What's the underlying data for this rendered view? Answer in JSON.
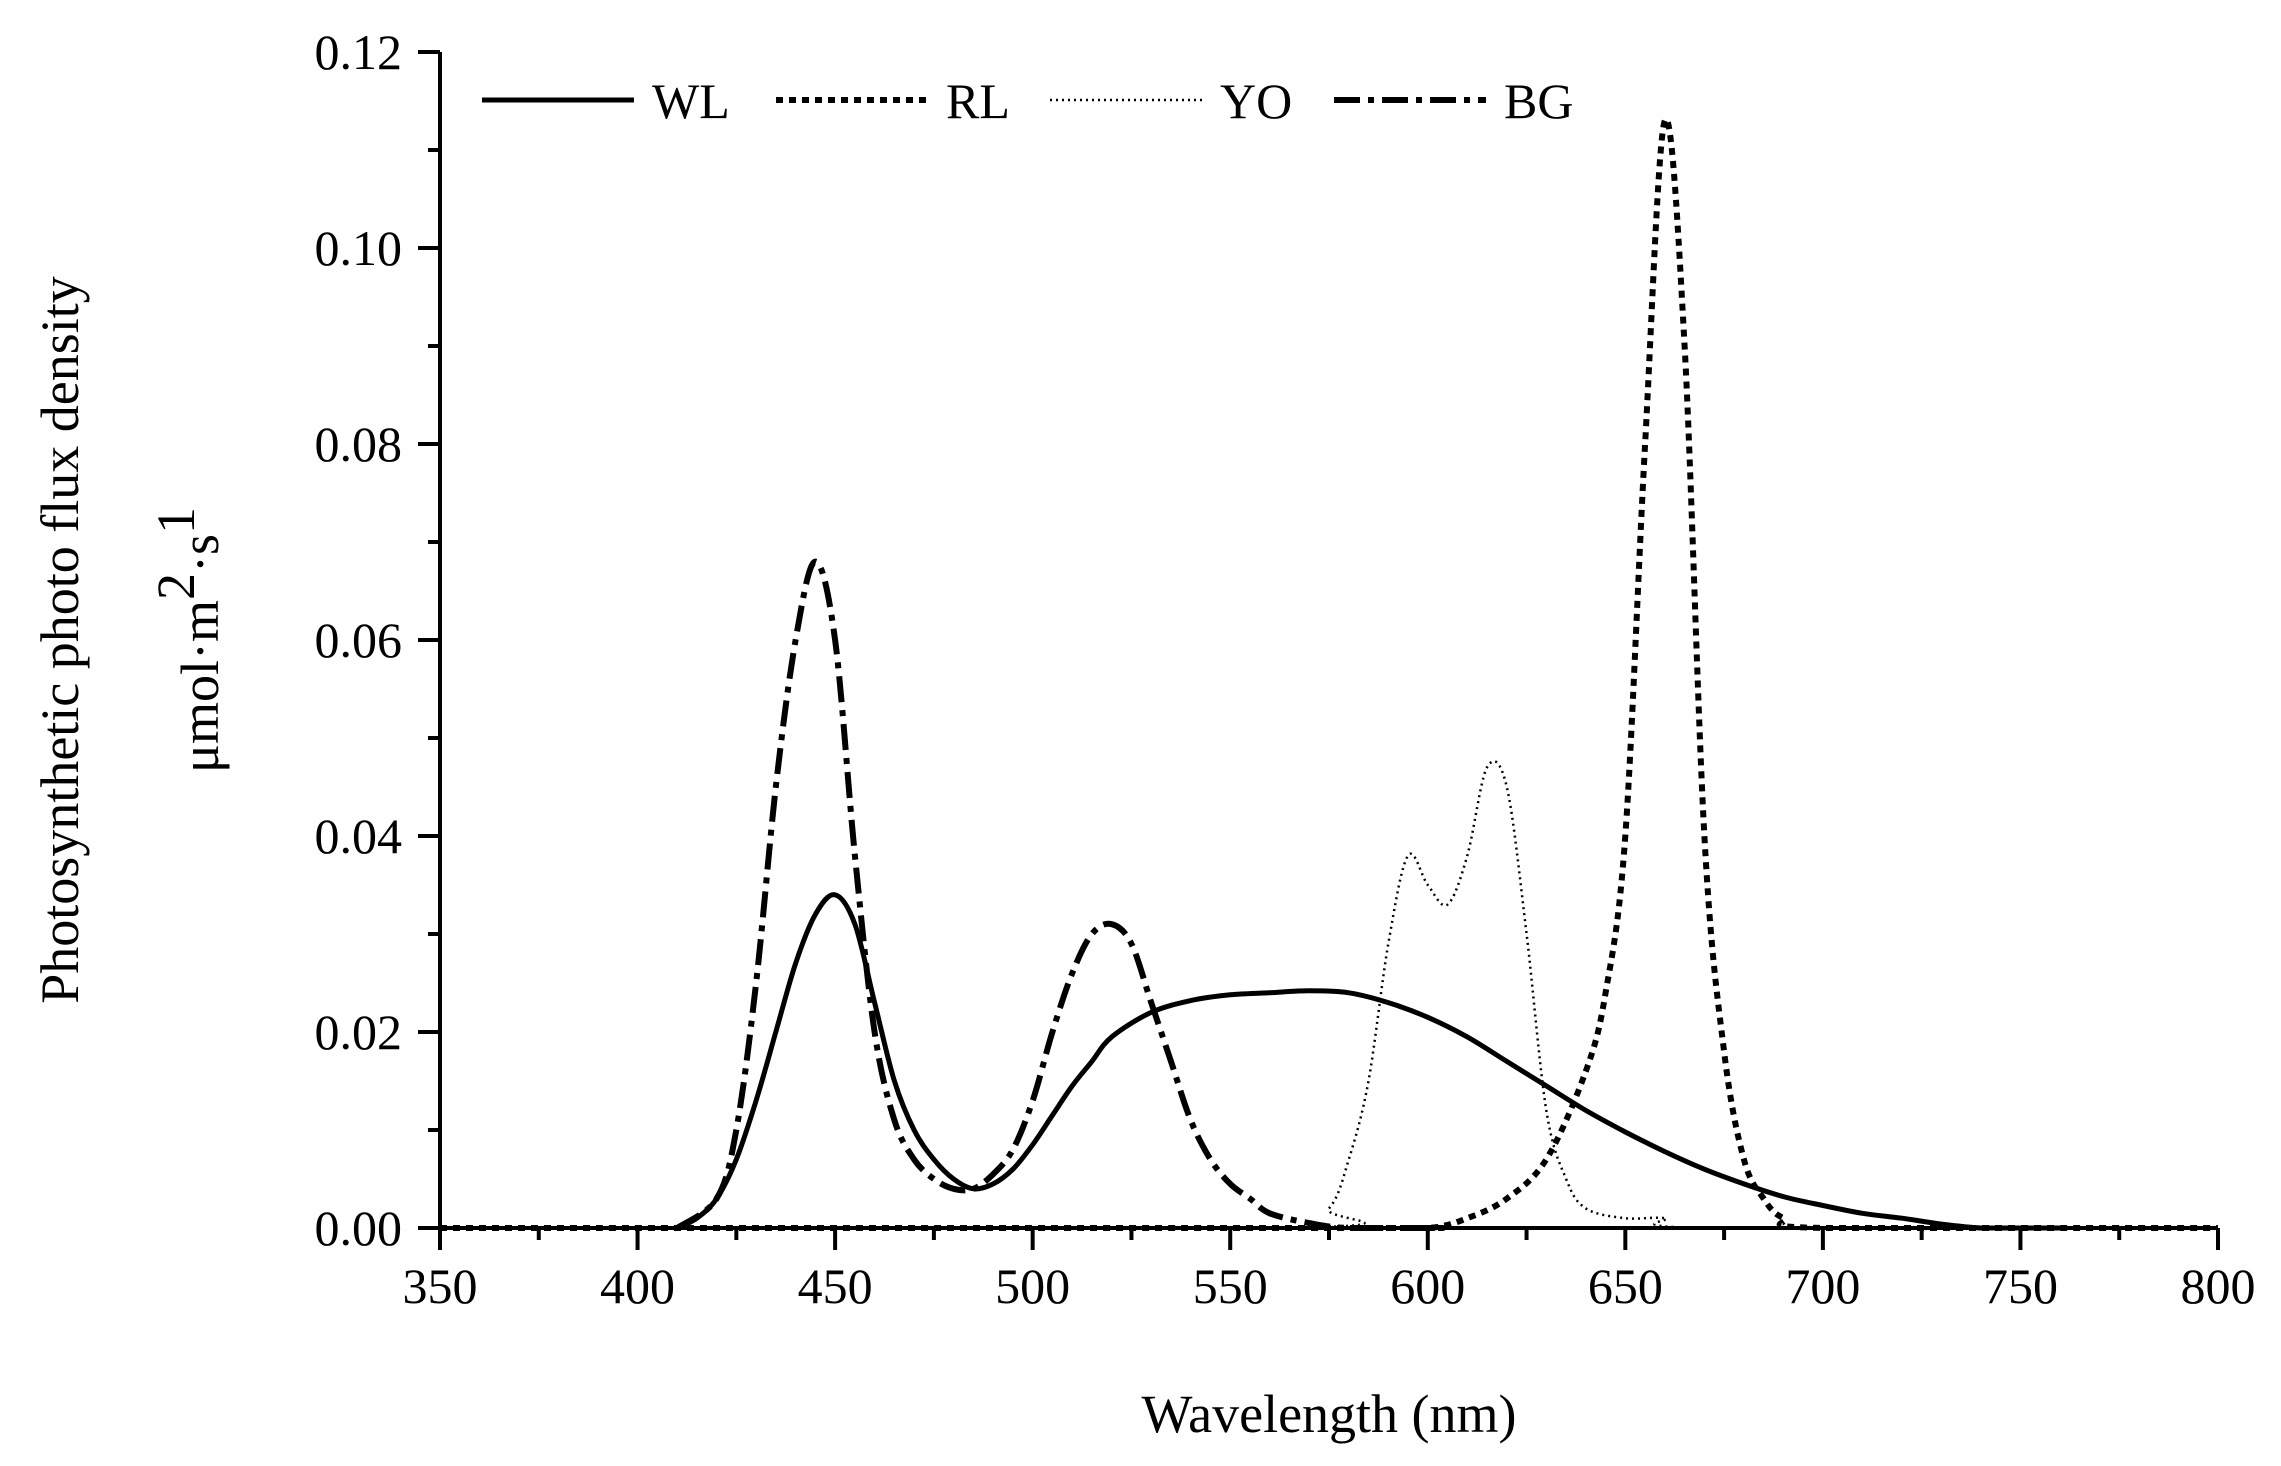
{
  "chart_data": {
    "type": "line",
    "title": "",
    "xlabel": "Wavelength (nm)",
    "ylabel": "Photosynthetic photo flux density",
    "ylabel_unit": {
      "base": "μmol·m",
      "sup1": "2",
      "mid": "·s",
      "sup2": "1"
    },
    "xlim": [
      350,
      800
    ],
    "ylim": [
      0,
      0.12
    ],
    "xticks": [
      350,
      400,
      450,
      500,
      550,
      600,
      650,
      700,
      750,
      800
    ],
    "yticks": [
      0.0,
      0.02,
      0.04,
      0.06,
      0.08,
      0.1,
      0.12
    ],
    "grid": false,
    "legend_position": "top",
    "colors": {
      "line": "#000000",
      "axis": "#000000",
      "background": "#ffffff"
    },
    "series": [
      {
        "name": "WL",
        "style": "solid",
        "points": [
          [
            410,
            0
          ],
          [
            415,
            0.001
          ],
          [
            420,
            0.003
          ],
          [
            425,
            0.007
          ],
          [
            430,
            0.013
          ],
          [
            435,
            0.02
          ],
          [
            440,
            0.027
          ],
          [
            445,
            0.032
          ],
          [
            450,
            0.034
          ],
          [
            455,
            0.031
          ],
          [
            460,
            0.023
          ],
          [
            465,
            0.015
          ],
          [
            470,
            0.01
          ],
          [
            475,
            0.007
          ],
          [
            480,
            0.005
          ],
          [
            485,
            0.004
          ],
          [
            490,
            0.0045
          ],
          [
            495,
            0.006
          ],
          [
            500,
            0.0085
          ],
          [
            505,
            0.0115
          ],
          [
            510,
            0.0145
          ],
          [
            515,
            0.017
          ],
          [
            520,
            0.0195
          ],
          [
            530,
            0.022
          ],
          [
            540,
            0.0232
          ],
          [
            550,
            0.0238
          ],
          [
            560,
            0.024
          ],
          [
            570,
            0.0242
          ],
          [
            580,
            0.024
          ],
          [
            590,
            0.023
          ],
          [
            600,
            0.0215
          ],
          [
            610,
            0.0195
          ],
          [
            620,
            0.017
          ],
          [
            630,
            0.0145
          ],
          [
            640,
            0.012
          ],
          [
            650,
            0.0098
          ],
          [
            660,
            0.0078
          ],
          [
            670,
            0.006
          ],
          [
            680,
            0.0045
          ],
          [
            690,
            0.0032
          ],
          [
            700,
            0.0023
          ],
          [
            710,
            0.0015
          ],
          [
            720,
            0.001
          ],
          [
            730,
            0.0004
          ],
          [
            740,
            0
          ],
          [
            750,
            0
          ],
          [
            760,
            0
          ]
        ]
      },
      {
        "name": "RL",
        "style": "dotted",
        "points": [
          [
            350,
            0
          ],
          [
            580,
            0
          ],
          [
            600,
            0
          ],
          [
            610,
            0.001
          ],
          [
            620,
            0.003
          ],
          [
            630,
            0.007
          ],
          [
            640,
            0.016
          ],
          [
            645,
            0.024
          ],
          [
            650,
            0.04
          ],
          [
            655,
            0.08
          ],
          [
            660,
            0.113
          ],
          [
            665,
            0.09
          ],
          [
            670,
            0.04
          ],
          [
            675,
            0.018
          ],
          [
            680,
            0.007
          ],
          [
            685,
            0.003
          ],
          [
            690,
            0.001
          ],
          [
            700,
            0
          ],
          [
            800,
            0
          ]
        ]
      },
      {
        "name": "YO",
        "style": "fine-dotted",
        "points": [
          [
            350,
            0
          ],
          [
            565,
            0
          ],
          [
            575,
            0.002
          ],
          [
            580,
            0.007
          ],
          [
            585,
            0.015
          ],
          [
            590,
            0.029
          ],
          [
            595,
            0.038
          ],
          [
            600,
            0.035
          ],
          [
            605,
            0.033
          ],
          [
            610,
            0.038
          ],
          [
            615,
            0.047
          ],
          [
            620,
            0.045
          ],
          [
            625,
            0.03
          ],
          [
            630,
            0.012
          ],
          [
            635,
            0.005
          ],
          [
            640,
            0.002
          ],
          [
            650,
            0.001
          ],
          [
            660,
            0.001
          ],
          [
            670,
            0
          ],
          [
            800,
            0
          ]
        ]
      },
      {
        "name": "BG",
        "style": "dash-dot",
        "points": [
          [
            410,
            0
          ],
          [
            420,
            0.003
          ],
          [
            425,
            0.01
          ],
          [
            430,
            0.025
          ],
          [
            435,
            0.045
          ],
          [
            440,
            0.06
          ],
          [
            445,
            0.068
          ],
          [
            450,
            0.06
          ],
          [
            455,
            0.038
          ],
          [
            460,
            0.02
          ],
          [
            465,
            0.011
          ],
          [
            470,
            0.007
          ],
          [
            475,
            0.005
          ],
          [
            480,
            0.004
          ],
          [
            485,
            0.004
          ],
          [
            490,
            0.0055
          ],
          [
            495,
            0.008
          ],
          [
            500,
            0.013
          ],
          [
            505,
            0.02
          ],
          [
            510,
            0.026
          ],
          [
            515,
            0.03
          ],
          [
            520,
            0.031
          ],
          [
            525,
            0.029
          ],
          [
            530,
            0.023
          ],
          [
            535,
            0.017
          ],
          [
            540,
            0.011
          ],
          [
            545,
            0.007
          ],
          [
            550,
            0.0045
          ],
          [
            555,
            0.003
          ],
          [
            560,
            0.0015
          ],
          [
            570,
            0.0005
          ],
          [
            580,
            0
          ],
          [
            600,
            0
          ]
        ]
      }
    ]
  }
}
